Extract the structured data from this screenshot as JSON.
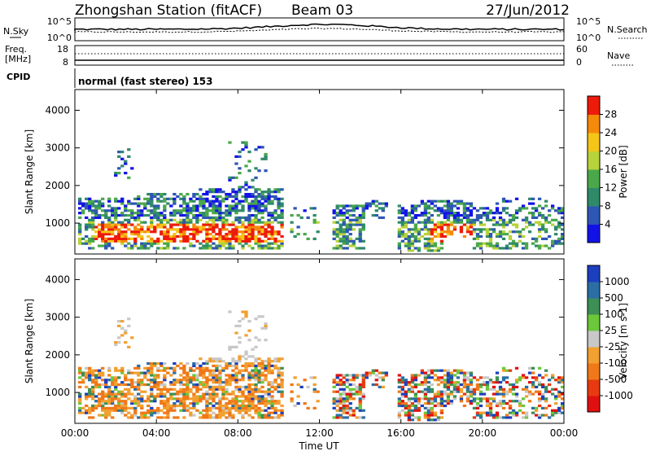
{
  "header": {
    "station": "Zhongshan Station (fitACF)",
    "beam": "Beam 03",
    "date": "27/Jun/2012"
  },
  "summary_panels": {
    "nsky_label": "N.Sky",
    "nsky_ticks": [
      "10^5",
      "10^0"
    ],
    "nsearch_label": "N.Search",
    "nsearch_ticks": [
      "10^5",
      "10^0"
    ],
    "freq_label_1": "Freq.",
    "freq_label_2": "[MHz]",
    "freq_ticks": [
      "18",
      "8"
    ],
    "nave_label": "Nave",
    "nave_ticks": [
      "60",
      "0"
    ],
    "cpid_label": "CPID",
    "cpid_text": "normal (fast stereo) 153"
  },
  "chart_data": [
    {
      "type": "heatmap",
      "name": "power-panel",
      "xlabel": "Time UT",
      "ylabel": "Slant Range [km]",
      "x_ticks": [
        "00:00",
        "04:00",
        "08:00",
        "12:00",
        "16:00",
        "20:00",
        "00:00"
      ],
      "x_range_hours": [
        0,
        24
      ],
      "y_ticks": [
        1000,
        2000,
        3000,
        4000
      ],
      "y_range_km": [
        180,
        4550
      ],
      "colorbar": {
        "label": "Power [dB]",
        "ticks": [
          "4",
          "8",
          "12",
          "16",
          "20",
          "24",
          "28"
        ],
        "colors": [
          "#1212e8",
          "#2e56b4",
          "#2f8a6a",
          "#4aa84a",
          "#b8d23a",
          "#f5c518",
          "#f58a0a",
          "#ee1a0a"
        ]
      }
    },
    {
      "type": "heatmap",
      "name": "velocity-panel",
      "xlabel": "Time UT",
      "ylabel": "Slant Range [km]",
      "x_ticks": [
        "00:00",
        "04:00",
        "08:00",
        "12:00",
        "16:00",
        "20:00",
        "00:00"
      ],
      "x_range_hours": [
        0,
        24
      ],
      "y_ticks": [
        1000,
        2000,
        3000,
        4000
      ],
      "y_range_km": [
        180,
        4550
      ],
      "colorbar": {
        "label": "Velocity [m s-1]",
        "ticks": [
          "1000",
          "500",
          "100",
          "25",
          "-25",
          "-100",
          "-500",
          "-1000"
        ],
        "colors": [
          "#1b3fbf",
          "#2b6ea6",
          "#3d8f55",
          "#6ac83a",
          "#c8c8c8",
          "#f2a030",
          "#f07818",
          "#e83a10",
          "#e01010"
        ]
      }
    }
  ]
}
